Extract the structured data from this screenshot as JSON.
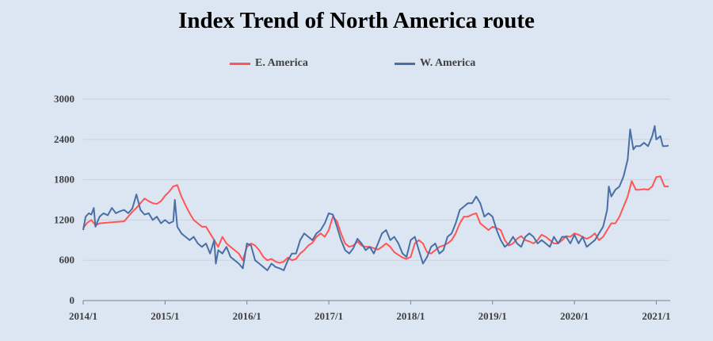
{
  "chart_data": {
    "type": "line",
    "title": "Index Trend of North America route",
    "xlabel": "",
    "ylabel": "",
    "x_tick_labels": [
      "2014/1",
      "2015/1",
      "2016/1",
      "2017/1",
      "2018/1",
      "2019/1",
      "2020/1",
      "2021/1"
    ],
    "xlim": [
      2014.0,
      2021.17
    ],
    "ylim": [
      0,
      3000
    ],
    "y_ticks": [
      0,
      600,
      1200,
      1800,
      2400,
      3000
    ],
    "grid": true,
    "legend_position": "top",
    "series": [
      {
        "name": "E. America",
        "color": "#ff5555",
        "points": [
          [
            2014.0,
            1080
          ],
          [
            2014.05,
            1160
          ],
          [
            2014.1,
            1200
          ],
          [
            2014.15,
            1120
          ],
          [
            2014.2,
            1150
          ],
          [
            2014.3,
            1160
          ],
          [
            2014.4,
            1170
          ],
          [
            2014.5,
            1180
          ],
          [
            2014.55,
            1250
          ],
          [
            2014.6,
            1320
          ],
          [
            2014.65,
            1380
          ],
          [
            2014.7,
            1450
          ],
          [
            2014.75,
            1520
          ],
          [
            2014.8,
            1480
          ],
          [
            2014.85,
            1450
          ],
          [
            2014.9,
            1440
          ],
          [
            2014.95,
            1480
          ],
          [
            2015.0,
            1560
          ],
          [
            2015.05,
            1620
          ],
          [
            2015.1,
            1700
          ],
          [
            2015.15,
            1720
          ],
          [
            2015.2,
            1550
          ],
          [
            2015.25,
            1420
          ],
          [
            2015.3,
            1300
          ],
          [
            2015.35,
            1200
          ],
          [
            2015.4,
            1150
          ],
          [
            2015.45,
            1100
          ],
          [
            2015.5,
            1100
          ],
          [
            2015.55,
            1000
          ],
          [
            2015.6,
            900
          ],
          [
            2015.65,
            800
          ],
          [
            2015.7,
            950
          ],
          [
            2015.75,
            850
          ],
          [
            2015.8,
            800
          ],
          [
            2015.85,
            750
          ],
          [
            2015.9,
            700
          ],
          [
            2015.95,
            600
          ],
          [
            2016.0,
            800
          ],
          [
            2016.05,
            850
          ],
          [
            2016.1,
            820
          ],
          [
            2016.15,
            750
          ],
          [
            2016.2,
            650
          ],
          [
            2016.25,
            600
          ],
          [
            2016.3,
            620
          ],
          [
            2016.35,
            580
          ],
          [
            2016.4,
            560
          ],
          [
            2016.45,
            580
          ],
          [
            2016.5,
            640
          ],
          [
            2016.55,
            600
          ],
          [
            2016.6,
            620
          ],
          [
            2016.65,
            700
          ],
          [
            2016.7,
            750
          ],
          [
            2016.75,
            820
          ],
          [
            2016.8,
            860
          ],
          [
            2016.85,
            950
          ],
          [
            2016.9,
            1000
          ],
          [
            2016.95,
            950
          ],
          [
            2017.0,
            1050
          ],
          [
            2017.05,
            1250
          ],
          [
            2017.1,
            1180
          ],
          [
            2017.15,
            1000
          ],
          [
            2017.2,
            850
          ],
          [
            2017.25,
            800
          ],
          [
            2017.3,
            820
          ],
          [
            2017.35,
            880
          ],
          [
            2017.4,
            820
          ],
          [
            2017.45,
            800
          ],
          [
            2017.5,
            800
          ],
          [
            2017.55,
            780
          ],
          [
            2017.6,
            760
          ],
          [
            2017.65,
            800
          ],
          [
            2017.7,
            850
          ],
          [
            2017.75,
            800
          ],
          [
            2017.8,
            720
          ],
          [
            2017.85,
            680
          ],
          [
            2017.9,
            640
          ],
          [
            2017.95,
            620
          ],
          [
            2018.0,
            650
          ],
          [
            2018.05,
            850
          ],
          [
            2018.1,
            900
          ],
          [
            2018.15,
            850
          ],
          [
            2018.2,
            720
          ],
          [
            2018.25,
            700
          ],
          [
            2018.3,
            750
          ],
          [
            2018.35,
            800
          ],
          [
            2018.4,
            820
          ],
          [
            2018.45,
            850
          ],
          [
            2018.5,
            900
          ],
          [
            2018.55,
            1000
          ],
          [
            2018.6,
            1150
          ],
          [
            2018.65,
            1250
          ],
          [
            2018.7,
            1250
          ],
          [
            2018.75,
            1280
          ],
          [
            2018.8,
            1300
          ],
          [
            2018.85,
            1150
          ],
          [
            2018.9,
            1100
          ],
          [
            2018.95,
            1050
          ],
          [
            2019.0,
            1100
          ],
          [
            2019.05,
            1080
          ],
          [
            2019.1,
            1050
          ],
          [
            2019.15,
            900
          ],
          [
            2019.2,
            820
          ],
          [
            2019.25,
            850
          ],
          [
            2019.3,
            920
          ],
          [
            2019.35,
            960
          ],
          [
            2019.4,
            900
          ],
          [
            2019.45,
            880
          ],
          [
            2019.5,
            850
          ],
          [
            2019.55,
            900
          ],
          [
            2019.6,
            980
          ],
          [
            2019.65,
            950
          ],
          [
            2019.7,
            900
          ],
          [
            2019.75,
            850
          ],
          [
            2019.8,
            850
          ],
          [
            2019.85,
            900
          ],
          [
            2019.9,
            960
          ],
          [
            2019.95,
            950
          ],
          [
            2020.0,
            1000
          ],
          [
            2020.05,
            980
          ],
          [
            2020.1,
            950
          ],
          [
            2020.15,
            920
          ],
          [
            2020.2,
            950
          ],
          [
            2020.25,
            1000
          ],
          [
            2020.3,
            900
          ],
          [
            2020.35,
            950
          ],
          [
            2020.4,
            1050
          ],
          [
            2020.45,
            1150
          ],
          [
            2020.5,
            1150
          ],
          [
            2020.55,
            1250
          ],
          [
            2020.6,
            1400
          ],
          [
            2020.65,
            1550
          ],
          [
            2020.7,
            1780
          ],
          [
            2020.75,
            1650
          ],
          [
            2020.8,
            1650
          ],
          [
            2020.85,
            1660
          ],
          [
            2020.9,
            1650
          ],
          [
            2020.95,
            1700
          ],
          [
            2021.0,
            1840
          ],
          [
            2021.05,
            1850
          ],
          [
            2021.1,
            1700
          ],
          [
            2021.15,
            1700
          ]
        ]
      },
      {
        "name": "W. America",
        "color": "#4a6fa5",
        "points": [
          [
            2014.0,
            1050
          ],
          [
            2014.03,
            1250
          ],
          [
            2014.07,
            1300
          ],
          [
            2014.1,
            1280
          ],
          [
            2014.13,
            1380
          ],
          [
            2014.15,
            1100
          ],
          [
            2014.2,
            1250
          ],
          [
            2014.25,
            1300
          ],
          [
            2014.3,
            1270
          ],
          [
            2014.35,
            1380
          ],
          [
            2014.4,
            1300
          ],
          [
            2014.45,
            1330
          ],
          [
            2014.5,
            1350
          ],
          [
            2014.55,
            1300
          ],
          [
            2014.6,
            1370
          ],
          [
            2014.65,
            1580
          ],
          [
            2014.7,
            1350
          ],
          [
            2014.75,
            1280
          ],
          [
            2014.8,
            1300
          ],
          [
            2014.85,
            1200
          ],
          [
            2014.9,
            1250
          ],
          [
            2014.95,
            1150
          ],
          [
            2015.0,
            1200
          ],
          [
            2015.05,
            1150
          ],
          [
            2015.1,
            1180
          ],
          [
            2015.12,
            1500
          ],
          [
            2015.15,
            1100
          ],
          [
            2015.2,
            1000
          ],
          [
            2015.25,
            950
          ],
          [
            2015.3,
            900
          ],
          [
            2015.35,
            950
          ],
          [
            2015.4,
            850
          ],
          [
            2015.45,
            800
          ],
          [
            2015.5,
            850
          ],
          [
            2015.55,
            700
          ],
          [
            2015.6,
            900
          ],
          [
            2015.62,
            550
          ],
          [
            2015.65,
            750
          ],
          [
            2015.7,
            700
          ],
          [
            2015.75,
            800
          ],
          [
            2015.8,
            650
          ],
          [
            2015.85,
            600
          ],
          [
            2015.9,
            550
          ],
          [
            2015.95,
            480
          ],
          [
            2016.0,
            850
          ],
          [
            2016.05,
            820
          ],
          [
            2016.1,
            600
          ],
          [
            2016.15,
            550
          ],
          [
            2016.2,
            500
          ],
          [
            2016.25,
            450
          ],
          [
            2016.3,
            550
          ],
          [
            2016.35,
            500
          ],
          [
            2016.4,
            480
          ],
          [
            2016.45,
            450
          ],
          [
            2016.5,
            600
          ],
          [
            2016.55,
            700
          ],
          [
            2016.6,
            700
          ],
          [
            2016.65,
            900
          ],
          [
            2016.7,
            1000
          ],
          [
            2016.75,
            950
          ],
          [
            2016.8,
            900
          ],
          [
            2016.85,
            1000
          ],
          [
            2016.9,
            1050
          ],
          [
            2016.95,
            1150
          ],
          [
            2017.0,
            1300
          ],
          [
            2017.05,
            1280
          ],
          [
            2017.1,
            1100
          ],
          [
            2017.15,
            900
          ],
          [
            2017.2,
            750
          ],
          [
            2017.25,
            700
          ],
          [
            2017.3,
            780
          ],
          [
            2017.35,
            920
          ],
          [
            2017.4,
            850
          ],
          [
            2017.45,
            750
          ],
          [
            2017.5,
            800
          ],
          [
            2017.55,
            700
          ],
          [
            2017.6,
            850
          ],
          [
            2017.65,
            1000
          ],
          [
            2017.7,
            1050
          ],
          [
            2017.75,
            900
          ],
          [
            2017.8,
            950
          ],
          [
            2017.85,
            850
          ],
          [
            2017.9,
            700
          ],
          [
            2017.95,
            650
          ],
          [
            2018.0,
            900
          ],
          [
            2018.05,
            950
          ],
          [
            2018.1,
            750
          ],
          [
            2018.15,
            550
          ],
          [
            2018.2,
            650
          ],
          [
            2018.25,
            800
          ],
          [
            2018.3,
            850
          ],
          [
            2018.35,
            700
          ],
          [
            2018.4,
            750
          ],
          [
            2018.45,
            950
          ],
          [
            2018.5,
            1000
          ],
          [
            2018.55,
            1150
          ],
          [
            2018.6,
            1350
          ],
          [
            2018.65,
            1400
          ],
          [
            2018.7,
            1450
          ],
          [
            2018.75,
            1450
          ],
          [
            2018.8,
            1550
          ],
          [
            2018.85,
            1450
          ],
          [
            2018.9,
            1250
          ],
          [
            2018.95,
            1300
          ],
          [
            2019.0,
            1250
          ],
          [
            2019.05,
            1050
          ],
          [
            2019.1,
            900
          ],
          [
            2019.15,
            800
          ],
          [
            2019.2,
            850
          ],
          [
            2019.25,
            950
          ],
          [
            2019.3,
            850
          ],
          [
            2019.35,
            800
          ],
          [
            2019.4,
            950
          ],
          [
            2019.45,
            1000
          ],
          [
            2019.5,
            950
          ],
          [
            2019.55,
            850
          ],
          [
            2019.6,
            900
          ],
          [
            2019.65,
            850
          ],
          [
            2019.7,
            800
          ],
          [
            2019.75,
            950
          ],
          [
            2019.8,
            850
          ],
          [
            2019.85,
            950
          ],
          [
            2019.9,
            950
          ],
          [
            2019.95,
            850
          ],
          [
            2020.0,
            980
          ],
          [
            2020.05,
            850
          ],
          [
            2020.1,
            950
          ],
          [
            2020.15,
            800
          ],
          [
            2020.2,
            850
          ],
          [
            2020.25,
            900
          ],
          [
            2020.3,
            1000
          ],
          [
            2020.35,
            1100
          ],
          [
            2020.4,
            1350
          ],
          [
            2020.42,
            1700
          ],
          [
            2020.45,
            1550
          ],
          [
            2020.5,
            1650
          ],
          [
            2020.55,
            1700
          ],
          [
            2020.6,
            1850
          ],
          [
            2020.65,
            2100
          ],
          [
            2020.68,
            2550
          ],
          [
            2020.72,
            2250
          ],
          [
            2020.75,
            2300
          ],
          [
            2020.8,
            2300
          ],
          [
            2020.85,
            2350
          ],
          [
            2020.9,
            2300
          ],
          [
            2020.95,
            2450
          ],
          [
            2020.98,
            2600
          ],
          [
            2021.0,
            2400
          ],
          [
            2021.05,
            2450
          ],
          [
            2021.08,
            2300
          ],
          [
            2021.12,
            2300
          ],
          [
            2021.15,
            2310
          ]
        ]
      }
    ]
  }
}
